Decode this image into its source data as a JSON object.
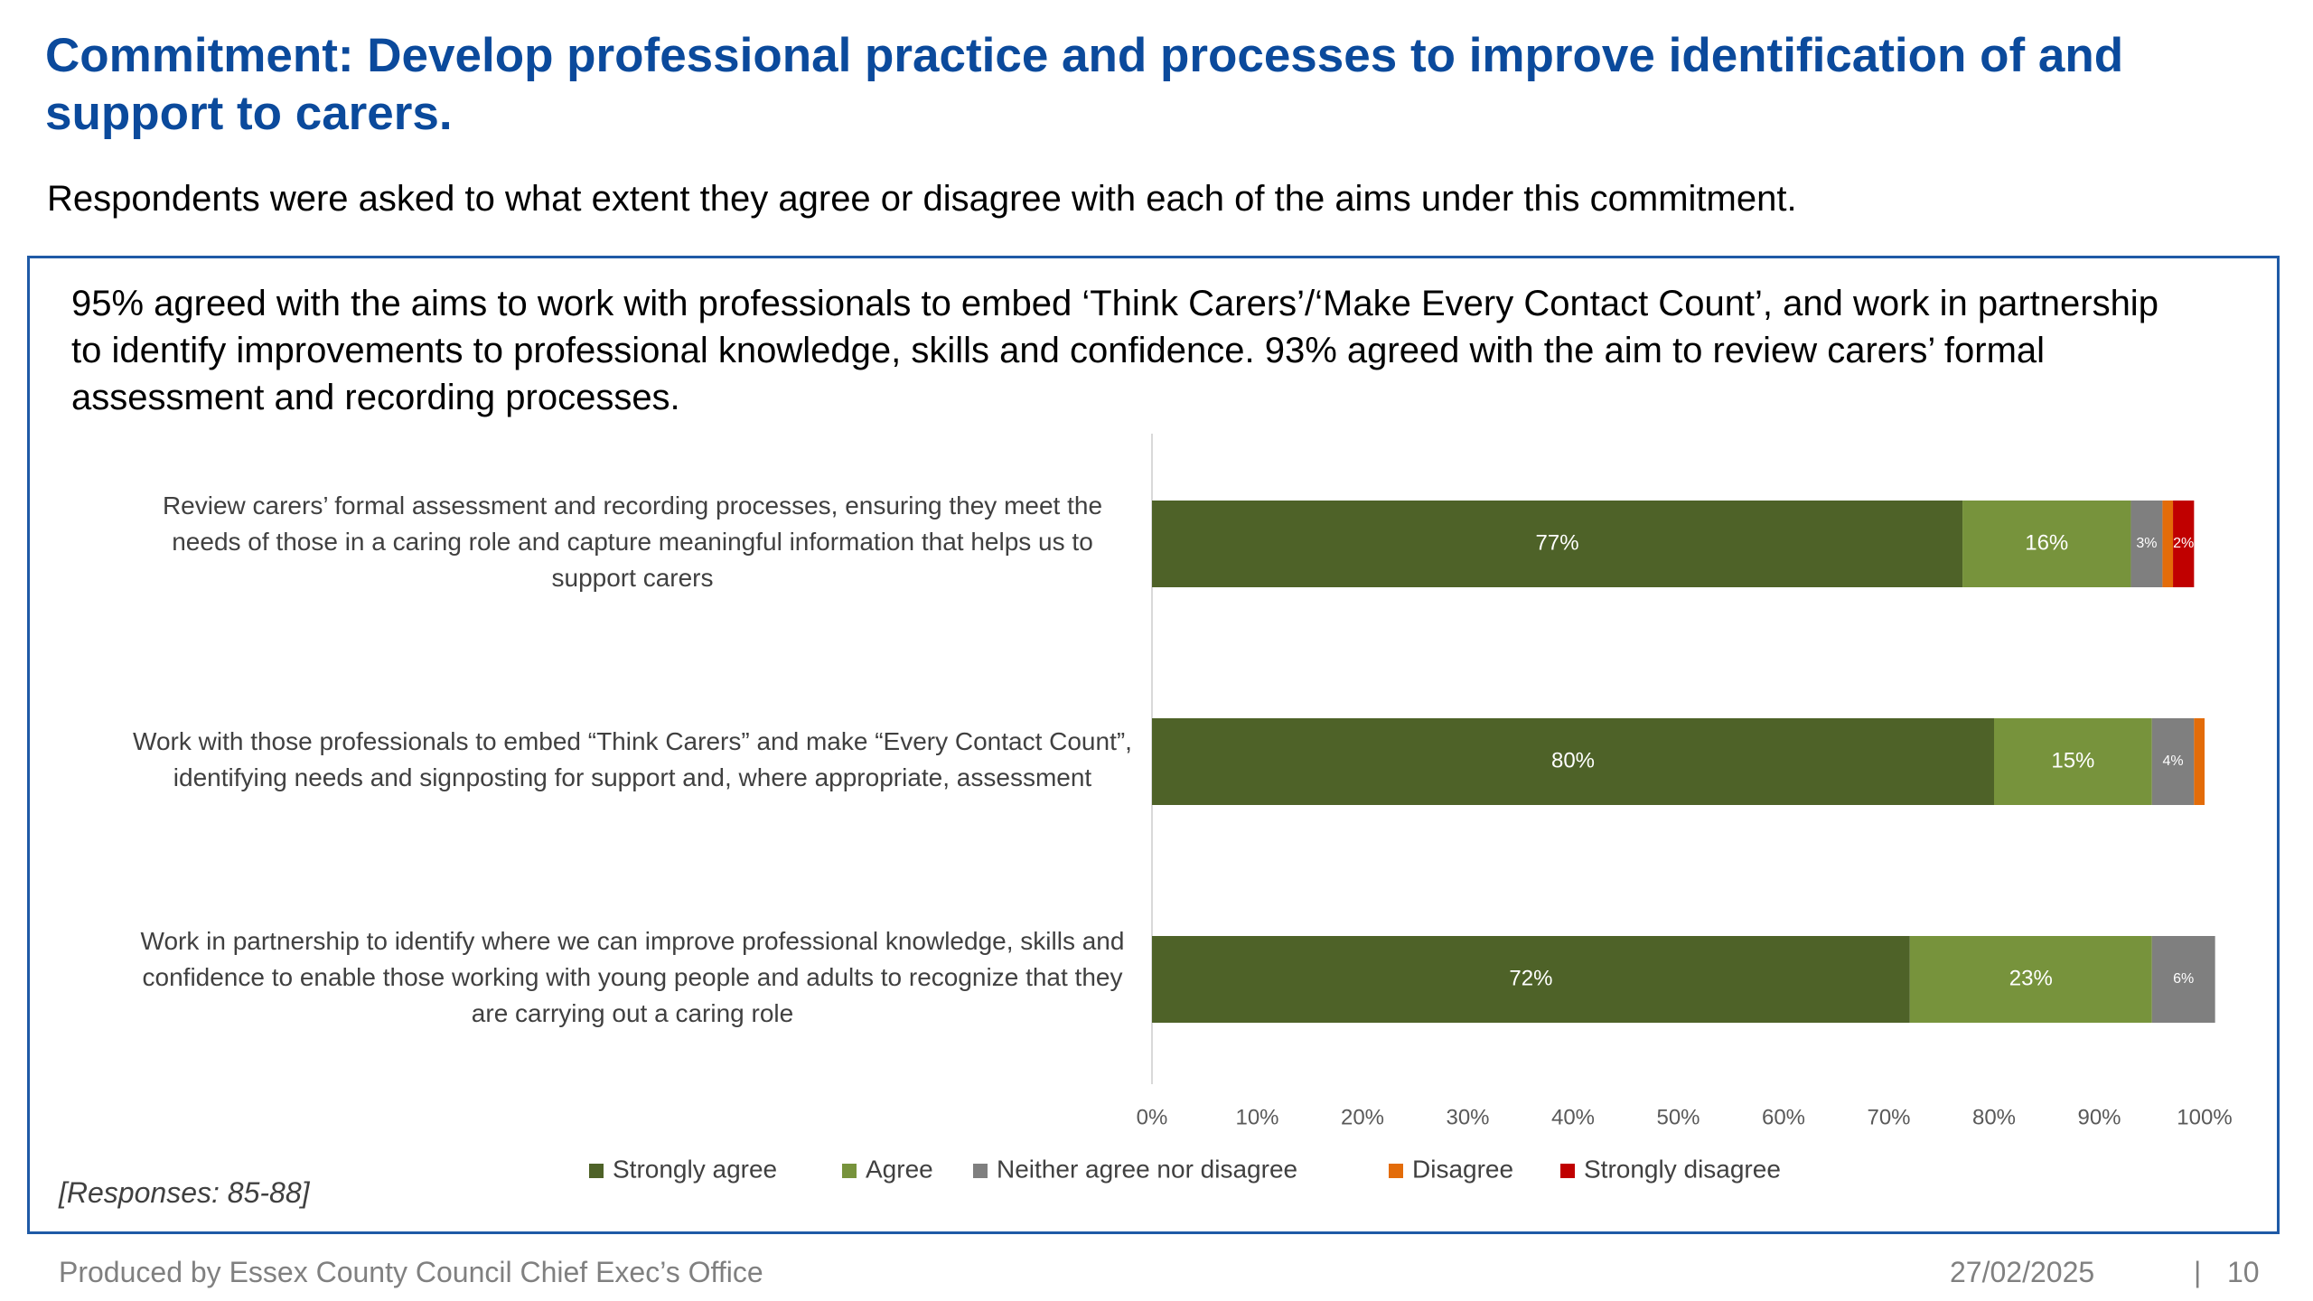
{
  "page": {
    "title": "Commitment: Develop professional practice and processes to improve identification of and support to carers.",
    "subtitle": "Respondents were asked to what extent they agree or disagree with each of the aims under this commitment.",
    "summary": "95% agreed with the aims to work with professionals to embed ‘Think Carers’/‘Make Every Contact Count’, and work in partnership to identify improvements to professional knowledge, skills and confidence. 93% agreed with the aim to review carers’ formal assessment and recording processes.",
    "responses": "[Responses: 85-88]",
    "footer_left": "Produced by Essex County Council Chief Exec’s Office",
    "footer_date": "27/02/2025",
    "footer_sep": "|",
    "footer_page": "10"
  },
  "chart_data": {
    "type": "bar",
    "orientation": "horizontal",
    "stacked": true,
    "categories": [
      "Review carers’ formal assessment and recording processes, ensuring they meet the needs of those in a caring role and capture meaningful information that helps us to support carers",
      "Work with those professionals to embed “Think Carers” and make “Every Contact Count”, identifying needs and signposting for support and, where appropriate, assessment",
      "Work in partnership to identify where we can improve professional knowledge, skills and confidence to enable those working with young people and adults to recognize that they are carrying out a caring role"
    ],
    "category_lines": [
      [
        "Review carers’ formal assessment and recording processes, ensuring they meet the",
        "needs of those in a caring role and capture meaningful information that helps us to",
        "support carers"
      ],
      [
        "Work with those professionals to embed “Think Carers” and make “Every Contact Count”,",
        "identifying needs and signposting for support and, where appropriate, assessment"
      ],
      [
        "Work in partnership to identify where we can improve professional knowledge, skills and",
        "confidence to enable those working with young people and adults to recognize that they",
        "are carrying out a caring role"
      ]
    ],
    "series": [
      {
        "name": "Strongly agree",
        "color": "#4e6228",
        "label_color": "#ffffff",
        "values": [
          77,
          80,
          72
        ],
        "labels": [
          "77%",
          "80%",
          "72%"
        ]
      },
      {
        "name": "Agree",
        "color": "#77933c",
        "label_color": "#ffffff",
        "values": [
          16,
          15,
          23
        ],
        "labels": [
          "16%",
          "15%",
          "23%"
        ]
      },
      {
        "name": "Neither agree nor disagree",
        "color": "#7f7f7f",
        "label_color": "#ffffff",
        "values": [
          3,
          4,
          6
        ],
        "labels": [
          "3%",
          "4%",
          "6%"
        ]
      },
      {
        "name": "Disagree",
        "color": "#e36c09",
        "label_color": "#ffffff",
        "values": [
          1,
          1,
          0
        ],
        "labels": [
          "",
          "",
          ""
        ]
      },
      {
        "name": "Strongly disagree",
        "color": "#c00000",
        "label_color": "#ffffff",
        "values": [
          2,
          0,
          0
        ],
        "labels": [
          "2%",
          "",
          ""
        ]
      }
    ],
    "xlim": [
      0,
      100
    ],
    "x_ticks": [
      "0%",
      "10%",
      "20%",
      "30%",
      "40%",
      "50%",
      "60%",
      "70%",
      "80%",
      "90%",
      "100%"
    ],
    "grid": false,
    "legend_position": "bottom"
  }
}
